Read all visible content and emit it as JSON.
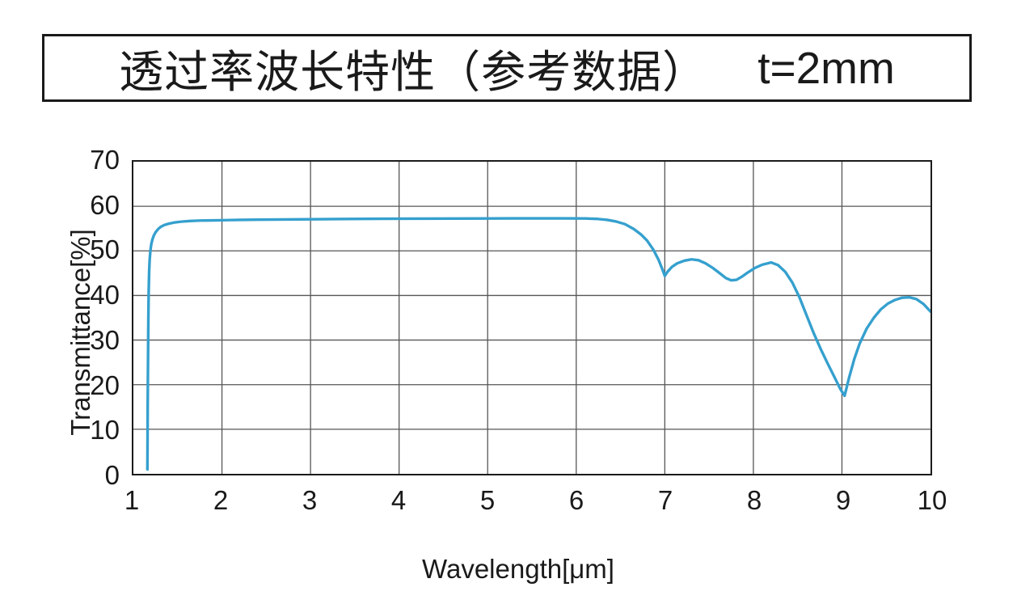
{
  "title_box": {
    "title": "透过率波长特性（参考数据）",
    "thickness_label": "t=2mm"
  },
  "colors": {
    "background": "#ffffff",
    "border": "#1b1b1b",
    "grid": "#565656",
    "curve": "#35A0CE",
    "text": "#1a1a1a"
  },
  "chart_data": {
    "type": "line",
    "title": "透过率波长特性（参考数据） t=2mm",
    "xlabel": "Wavelength[μm]",
    "ylabel": "Transmittance[%]",
    "xlim": [
      1,
      10
    ],
    "ylim": [
      0,
      70
    ],
    "x_ticks": [
      1,
      2,
      3,
      4,
      5,
      6,
      7,
      8,
      9,
      10
    ],
    "y_ticks": [
      0,
      10,
      20,
      30,
      40,
      50,
      60,
      70
    ],
    "grid": true,
    "legend_position": "none",
    "series": [
      {
        "name": "transmittance",
        "color": "#35A0CE",
        "points": [
          [
            1.158,
            1
          ],
          [
            1.16,
            8
          ],
          [
            1.162,
            16
          ],
          [
            1.165,
            26
          ],
          [
            1.169,
            35
          ],
          [
            1.173,
            41
          ],
          [
            1.178,
            45.5
          ],
          [
            1.184,
            48
          ],
          [
            1.192,
            50
          ],
          [
            1.202,
            51.5
          ],
          [
            1.215,
            52.6
          ],
          [
            1.232,
            53.5
          ],
          [
            1.252,
            54.2
          ],
          [
            1.28,
            54.9
          ],
          [
            1.31,
            55.4
          ],
          [
            1.35,
            55.8
          ],
          [
            1.4,
            56.1
          ],
          [
            1.46,
            56.35
          ],
          [
            1.54,
            56.55
          ],
          [
            1.64,
            56.7
          ],
          [
            1.76,
            56.8
          ],
          [
            1.9,
            56.85
          ],
          [
            2.05,
            56.9
          ],
          [
            2.2,
            56.95
          ],
          [
            2.4,
            57.0
          ],
          [
            2.7,
            57.05
          ],
          [
            3.0,
            57.1
          ],
          [
            3.4,
            57.15
          ],
          [
            3.8,
            57.2
          ],
          [
            4.2,
            57.22
          ],
          [
            4.6,
            57.25
          ],
          [
            5.0,
            57.28
          ],
          [
            5.4,
            57.3
          ],
          [
            5.8,
            57.3
          ],
          [
            6.1,
            57.28
          ],
          [
            6.25,
            57.15
          ],
          [
            6.35,
            56.95
          ],
          [
            6.45,
            56.6
          ],
          [
            6.55,
            56.0
          ],
          [
            6.65,
            54.9
          ],
          [
            6.73,
            53.7
          ],
          [
            6.8,
            52.3
          ],
          [
            6.87,
            50.3
          ],
          [
            6.93,
            48.0
          ],
          [
            6.97,
            46.0
          ],
          [
            7.0,
            44.4
          ],
          [
            7.03,
            45.3
          ],
          [
            7.08,
            46.4
          ],
          [
            7.14,
            47.2
          ],
          [
            7.22,
            47.8
          ],
          [
            7.3,
            48.1
          ],
          [
            7.38,
            47.9
          ],
          [
            7.46,
            47.2
          ],
          [
            7.54,
            46.2
          ],
          [
            7.62,
            45.0
          ],
          [
            7.69,
            43.9
          ],
          [
            7.75,
            43.4
          ],
          [
            7.81,
            43.5
          ],
          [
            7.87,
            44.2
          ],
          [
            7.94,
            45.2
          ],
          [
            8.02,
            46.2
          ],
          [
            8.1,
            46.9
          ],
          [
            8.2,
            47.4
          ],
          [
            8.28,
            46.8
          ],
          [
            8.36,
            45.3
          ],
          [
            8.44,
            42.9
          ],
          [
            8.52,
            39.6
          ],
          [
            8.6,
            35.6
          ],
          [
            8.68,
            31.6
          ],
          [
            8.76,
            28.0
          ],
          [
            8.84,
            24.7
          ],
          [
            8.92,
            21.5
          ],
          [
            8.98,
            19.1
          ],
          [
            9.03,
            17.5
          ],
          [
            9.08,
            21.5
          ],
          [
            9.14,
            25.8
          ],
          [
            9.2,
            29.2
          ],
          [
            9.28,
            32.6
          ],
          [
            9.36,
            35.0
          ],
          [
            9.44,
            36.9
          ],
          [
            9.52,
            38.2
          ],
          [
            9.6,
            39.0
          ],
          [
            9.68,
            39.5
          ],
          [
            9.76,
            39.6
          ],
          [
            9.84,
            39.2
          ],
          [
            9.92,
            38.1
          ],
          [
            10.0,
            36.4
          ]
        ]
      }
    ]
  }
}
